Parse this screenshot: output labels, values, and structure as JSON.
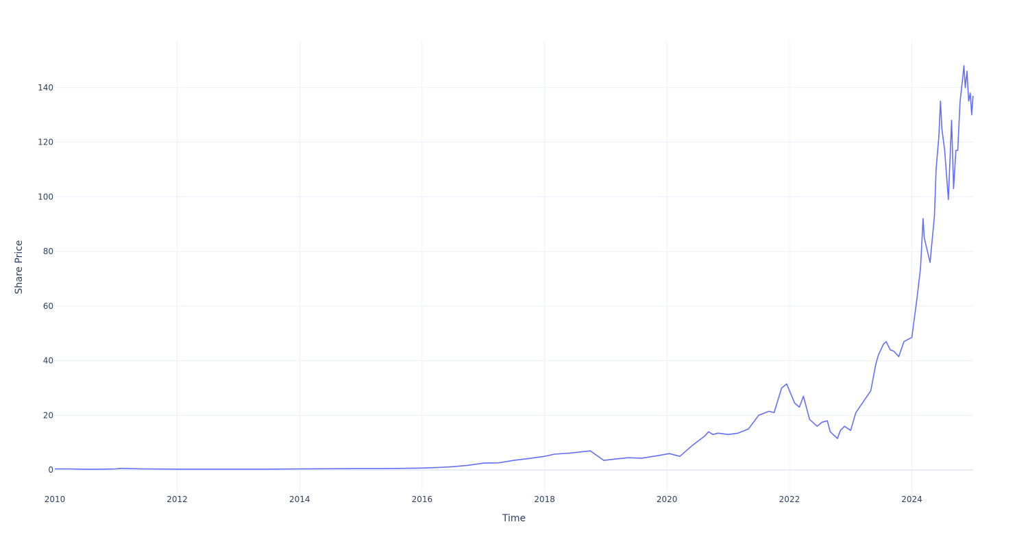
{
  "chart_data": {
    "type": "line",
    "title": "",
    "xlabel": "Time",
    "ylabel": "Share Price",
    "x_type": "date",
    "xlim": [
      "2010-01-01",
      "2025-01-01"
    ],
    "ylim": [
      -8,
      157
    ],
    "x_ticks": [
      "2010",
      "2012",
      "2014",
      "2016",
      "2018",
      "2020",
      "2022",
      "2024"
    ],
    "y_ticks": [
      0,
      20,
      40,
      60,
      80,
      100,
      120,
      140
    ],
    "grid": true,
    "legend": "none",
    "colors": {
      "line": "#636efa",
      "grid": "#ebf0f8",
      "zero_line": "#e5ecf6",
      "text": "#2a3f5f"
    },
    "series": [
      {
        "x": [
          "2010-01-01",
          "2010-04-01",
          "2010-07-01",
          "2010-10-01",
          "2011-01-01",
          "2011-02-01",
          "2011-06-01",
          "2011-10-01",
          "2012-01-01",
          "2012-06-01",
          "2012-12-01",
          "2013-06-01",
          "2014-01-01",
          "2014-06-01",
          "2015-01-01",
          "2015-06-01",
          "2016-01-01",
          "2016-04-01",
          "2016-07-01",
          "2016-10-01",
          "2017-01-01",
          "2017-04-01",
          "2017-07-01",
          "2017-10-01",
          "2018-01-01",
          "2018-03-01",
          "2018-06-01",
          "2018-10-01",
          "2018-12-20",
          "2019-03-01",
          "2019-05-15",
          "2019-08-01",
          "2019-11-01",
          "2020-01-15",
          "2020-03-18",
          "2020-06-01",
          "2020-08-15",
          "2020-09-05",
          "2020-10-01",
          "2020-11-01",
          "2021-01-01",
          "2021-03-01",
          "2021-05-01",
          "2021-07-01",
          "2021-09-01",
          "2021-10-01",
          "2021-11-15",
          "2021-12-15",
          "2022-01-01",
          "2022-02-01",
          "2022-03-01",
          "2022-03-25",
          "2022-05-01",
          "2022-06-15",
          "2022-07-15",
          "2022-08-15",
          "2022-09-01",
          "2022-10-14",
          "2022-11-01",
          "2022-11-25",
          "2023-01-01",
          "2023-02-01",
          "2023-03-01",
          "2023-05-01",
          "2023-05-30",
          "2023-06-15",
          "2023-07-15",
          "2023-08-01",
          "2023-08-25",
          "2023-09-15",
          "2023-10-15",
          "2023-11-15",
          "2023-12-15",
          "2024-01-01",
          "2024-01-15",
          "2024-02-01",
          "2024-02-22",
          "2024-03-08",
          "2024-03-15",
          "2024-04-19",
          "2024-05-15",
          "2024-05-25",
          "2024-06-10",
          "2024-06-20",
          "2024-06-28",
          "2024-07-15",
          "2024-08-06",
          "2024-08-25",
          "2024-09-06",
          "2024-09-20",
          "2024-10-01",
          "2024-10-15",
          "2024-10-28",
          "2024-11-07",
          "2024-11-15",
          "2024-11-25",
          "2024-12-05",
          "2024-12-15",
          "2024-12-23",
          "2024-12-31"
        ],
        "y": [
          0.4,
          0.4,
          0.25,
          0.3,
          0.4,
          0.6,
          0.4,
          0.35,
          0.3,
          0.3,
          0.3,
          0.3,
          0.4,
          0.45,
          0.5,
          0.5,
          0.7,
          0.9,
          1.2,
          1.7,
          2.5,
          2.6,
          3.5,
          4.2,
          5.0,
          5.8,
          6.2,
          7.0,
          3.5,
          4.0,
          4.5,
          4.3,
          5.2,
          6.0,
          5.0,
          9.0,
          12.5,
          14.0,
          13.0,
          13.5,
          13.0,
          13.5,
          15.0,
          20.0,
          21.5,
          21.0,
          30.0,
          31.5,
          29.0,
          24.5,
          23.0,
          27.0,
          18.5,
          16.0,
          17.5,
          18.0,
          14.0,
          11.5,
          14.5,
          16.0,
          14.5,
          21.0,
          23.5,
          29.0,
          38.5,
          42.0,
          46.0,
          47.0,
          44.0,
          43.5,
          41.5,
          47.0,
          48.0,
          48.5,
          55.0,
          63.0,
          74.0,
          92.0,
          85.0,
          76.0,
          93.0,
          110.0,
          122.0,
          135.0,
          125.0,
          117.0,
          99.0,
          128.0,
          103.0,
          117.0,
          117.0,
          135.0,
          142.0,
          148.0,
          140.0,
          146.0,
          135.0,
          138.0,
          130.0,
          137.0
        ]
      }
    ]
  }
}
